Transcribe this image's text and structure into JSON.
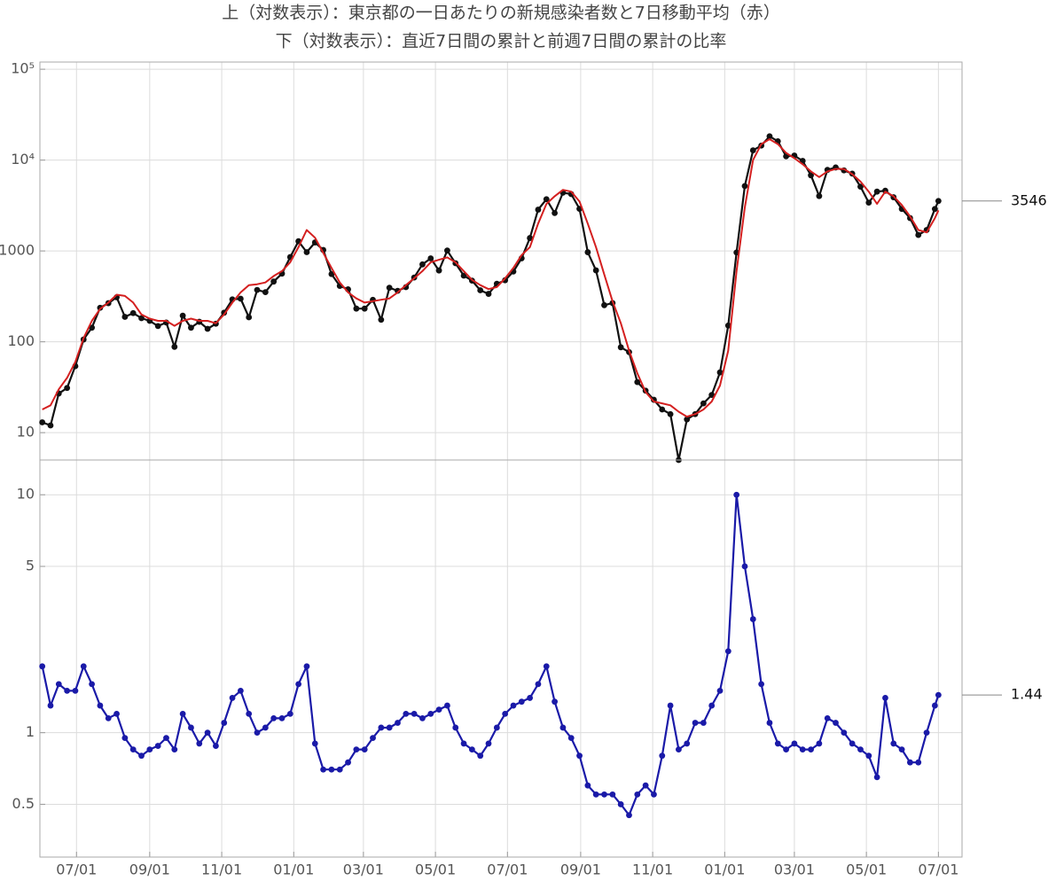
{
  "chart_data": [
    {
      "type": "line",
      "title": "上（対数表示）：東京都の一日あたりの新規感染者数と7日移動平均（赤）",
      "log_scale": true,
      "grid": true,
      "x": [
        -29,
        -22,
        -15,
        -8,
        -1,
        6,
        13,
        20,
        27,
        34,
        41,
        48,
        55,
        62,
        69,
        76,
        83,
        90,
        97,
        104,
        111,
        118,
        125,
        132,
        139,
        146,
        153,
        160,
        167,
        174,
        181,
        188,
        195,
        202,
        209,
        216,
        223,
        230,
        237,
        244,
        251,
        258,
        265,
        272,
        279,
        286,
        293,
        300,
        307,
        314,
        321,
        328,
        335,
        342,
        349,
        356,
        363,
        370,
        377,
        384,
        391,
        398,
        405,
        412,
        419,
        426,
        433,
        440,
        447,
        454,
        461,
        468,
        475,
        482,
        489,
        496,
        503,
        510,
        517,
        524,
        531,
        538,
        545,
        552,
        559,
        566,
        573,
        580,
        587,
        594,
        601,
        608,
        615,
        622,
        629,
        636,
        643,
        650,
        657,
        664,
        671,
        678,
        685,
        692,
        699,
        706,
        713,
        720,
        727,
        730
      ],
      "xlim": [
        -31,
        750
      ],
      "ylim": [
        5,
        120000
      ],
      "yticks": [
        10,
        100,
        1000,
        {
          "value": 10000,
          "label": "10⁴"
        },
        {
          "value": 100000,
          "label": "10⁵"
        }
      ],
      "series": [
        {
          "color": "#111111",
          "markers": true,
          "label_last": true,
          "values": [
            13,
            12,
            27,
            31,
            54,
            106,
            143,
            237,
            266,
            309,
            188,
            207,
            182,
            170,
            149,
            163,
            88,
            194,
            143,
            166,
            139,
            158,
            209,
            293,
            298,
            186,
            372,
            352,
            460,
            563,
            856,
            1278,
            970,
            1240,
            1026,
            556,
            412,
            378,
            232,
            232,
            290,
            175,
            394,
            364,
            399,
            510,
            711,
            828,
            609,
            1010,
            732,
            535,
            471,
            369,
            337,
            435,
            476,
            593,
            830,
            1387,
            2848,
            3709,
            2612,
            4377,
            4220,
            2909,
            968,
            611,
            253,
            267,
            87,
            77,
            36,
            29,
            23,
            18,
            16,
            5,
            14,
            16,
            21,
            26,
            46,
            151,
            962,
            5185,
            12813,
            14445,
            18287,
            16113,
            11000,
            11200,
            9800,
            6800,
            4020,
            7800,
            8300,
            7700,
            7100,
            5100,
            3400,
            4500,
            4600,
            3900,
            2900,
            2300,
            1500,
            1700,
            2900,
            3546
          ]
        },
        {
          "color": "#d42020",
          "markers": false,
          "values": [
            18,
            20,
            30,
            40,
            60,
            110,
            170,
            230,
            270,
            330,
            320,
            270,
            200,
            180,
            170,
            170,
            150,
            170,
            180,
            170,
            170,
            160,
            200,
            270,
            350,
            420,
            430,
            450,
            530,
            600,
            750,
            1100,
            1700,
            1400,
            950,
            650,
            450,
            350,
            300,
            270,
            280,
            290,
            300,
            350,
            420,
            500,
            600,
            750,
            800,
            850,
            750,
            600,
            480,
            420,
            380,
            400,
            500,
            650,
            900,
            1100,
            2000,
            3300,
            4000,
            4700,
            4500,
            3500,
            2000,
            1100,
            550,
            280,
            160,
            80,
            45,
            28,
            22,
            21,
            20,
            17,
            15,
            16,
            18,
            22,
            33,
            80,
            600,
            3000,
            10000,
            15000,
            17000,
            15000,
            12000,
            10500,
            9000,
            7500,
            6500,
            7500,
            8000,
            8000,
            7000,
            5800,
            4500,
            3300,
            4500,
            4000,
            3200,
            2400,
            1700,
            1600,
            2300,
            2800
          ]
        }
      ]
    },
    {
      "type": "line",
      "title": "下（対数表示）：直近7日間の累計と前週7日間の累計の比率",
      "log_scale": true,
      "grid": true,
      "x": [
        -29,
        -22,
        -15,
        -8,
        -1,
        6,
        13,
        20,
        27,
        34,
        41,
        48,
        55,
        62,
        69,
        76,
        83,
        90,
        97,
        104,
        111,
        118,
        125,
        132,
        139,
        146,
        153,
        160,
        167,
        174,
        181,
        188,
        195,
        202,
        209,
        216,
        223,
        230,
        237,
        244,
        251,
        258,
        265,
        272,
        279,
        286,
        293,
        300,
        307,
        314,
        321,
        328,
        335,
        342,
        349,
        356,
        363,
        370,
        377,
        384,
        391,
        398,
        405,
        412,
        419,
        426,
        433,
        440,
        447,
        454,
        461,
        468,
        475,
        482,
        489,
        496,
        503,
        510,
        517,
        524,
        531,
        538,
        545,
        552,
        559,
        566,
        573,
        580,
        587,
        594,
        601,
        608,
        615,
        622,
        629,
        636,
        643,
        650,
        657,
        664,
        671,
        678,
        685,
        692,
        699,
        706,
        713,
        720,
        727,
        730
      ],
      "xlim": [
        -31,
        750
      ],
      "xticks": [
        {
          "value": 0,
          "label": "07/01"
        },
        {
          "value": 62,
          "label": "09/01"
        },
        {
          "value": 123,
          "label": "11/01"
        },
        {
          "value": 184,
          "label": "01/01"
        },
        {
          "value": 243,
          "label": "03/01"
        },
        {
          "value": 304,
          "label": "05/01"
        },
        {
          "value": 365,
          "label": "07/01"
        },
        {
          "value": 427,
          "label": "09/01"
        },
        {
          "value": 488,
          "label": "11/01"
        },
        {
          "value": 549,
          "label": "01/01"
        },
        {
          "value": 608,
          "label": "03/01"
        },
        {
          "value": 669,
          "label": "05/01"
        },
        {
          "value": 730,
          "label": "07/01"
        }
      ],
      "ylim": [
        0.3,
        14
      ],
      "yticks": [
        0.5,
        1,
        5,
        10
      ],
      "series": [
        {
          "color": "#1a1aa8",
          "markers": true,
          "label_last": true,
          "values": [
            1.9,
            1.3,
            1.6,
            1.5,
            1.5,
            1.9,
            1.6,
            1.3,
            1.15,
            1.2,
            0.95,
            0.85,
            0.8,
            0.85,
            0.88,
            0.95,
            0.85,
            1.2,
            1.05,
            0.9,
            1.0,
            0.88,
            1.1,
            1.4,
            1.5,
            1.2,
            1.0,
            1.05,
            1.15,
            1.15,
            1.2,
            1.6,
            1.9,
            0.9,
            0.7,
            0.7,
            0.7,
            0.75,
            0.85,
            0.85,
            0.95,
            1.05,
            1.05,
            1.1,
            1.2,
            1.2,
            1.15,
            1.2,
            1.25,
            1.3,
            1.05,
            0.9,
            0.85,
            0.8,
            0.9,
            1.05,
            1.2,
            1.3,
            1.35,
            1.4,
            1.6,
            1.9,
            1.35,
            1.05,
            0.95,
            0.8,
            0.6,
            0.55,
            0.55,
            0.55,
            0.5,
            0.45,
            0.55,
            0.6,
            0.55,
            0.8,
            1.3,
            0.85,
            0.9,
            1.1,
            1.1,
            1.3,
            1.5,
            2.2,
            10,
            5,
            3,
            1.6,
            1.1,
            0.9,
            0.85,
            0.9,
            0.85,
            0.85,
            0.9,
            1.15,
            1.1,
            1.0,
            0.9,
            0.85,
            0.8,
            0.65,
            1.4,
            0.9,
            0.85,
            0.75,
            0.75,
            1.0,
            1.3,
            1.44
          ]
        }
      ]
    }
  ]
}
